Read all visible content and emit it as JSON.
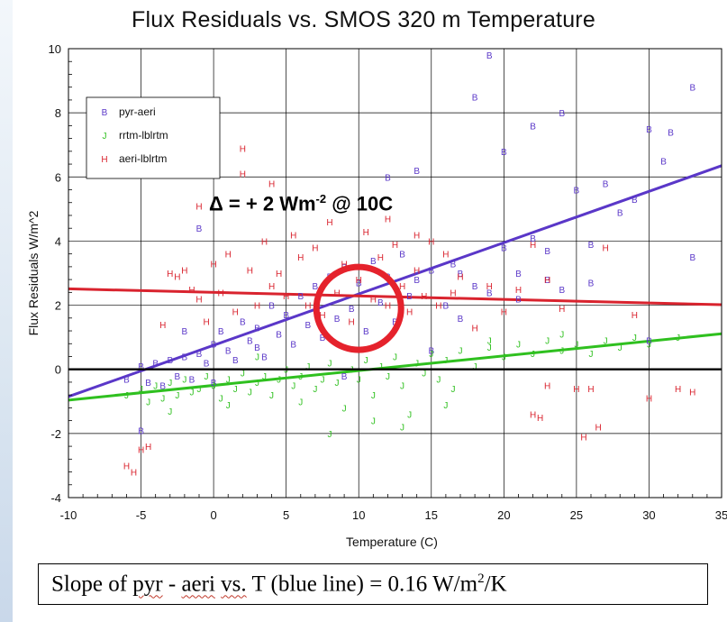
{
  "chart_data": {
    "type": "scatter",
    "title": "Flux Residuals vs. SMOS 320 m Temperature",
    "xlabel": "Temperature (C)",
    "ylabel": "Flux Residuals   W/m^2",
    "xlim": [
      -10,
      35
    ],
    "ylim": [
      -4,
      10
    ],
    "xticks": [
      "-10",
      "-5",
      "0",
      "5",
      "10",
      "15",
      "20",
      "25",
      "30",
      "35"
    ],
    "yticks": [
      "-4",
      "-2",
      "0",
      "2",
      "4",
      "6",
      "8",
      "10"
    ],
    "grid": true,
    "legend_position": "top-left",
    "series": [
      {
        "name": "pyr-aeri",
        "marker": "B",
        "color": "#5a37c8",
        "fit": {
          "slope": 0.16,
          "intercept": 0.75
        },
        "points": [
          [
            -6,
            -0.3
          ],
          [
            -5,
            0.1
          ],
          [
            -4.5,
            -0.4
          ],
          [
            -4,
            0.2
          ],
          [
            -3.5,
            -0.5
          ],
          [
            -3,
            0.3
          ],
          [
            -2.5,
            -0.2
          ],
          [
            -2,
            0.4
          ],
          [
            -1.5,
            -0.3
          ],
          [
            -1,
            0.5
          ],
          [
            -0.5,
            0.2
          ],
          [
            0,
            0.8
          ],
          [
            0,
            -0.4
          ],
          [
            0.5,
            1.2
          ],
          [
            1,
            0.6
          ],
          [
            1.5,
            0.3
          ],
          [
            2,
            1.5
          ],
          [
            2.5,
            0.9
          ],
          [
            3,
            1.3
          ],
          [
            3.5,
            0.4
          ],
          [
            4,
            2.0
          ],
          [
            4.5,
            1.1
          ],
          [
            5,
            1.7
          ],
          [
            5.5,
            0.8
          ],
          [
            6,
            2.3
          ],
          [
            6.5,
            1.4
          ],
          [
            7,
            2.6
          ],
          [
            7.5,
            1.0
          ],
          [
            8,
            2.9
          ],
          [
            8.5,
            1.6
          ],
          [
            9,
            3.2
          ],
          [
            9.5,
            1.9
          ],
          [
            10,
            2.7
          ],
          [
            10.5,
            1.2
          ],
          [
            11,
            3.4
          ],
          [
            11.5,
            2.1
          ],
          [
            12,
            2.9
          ],
          [
            12.5,
            1.5
          ],
          [
            13,
            3.6
          ],
          [
            13.5,
            2.3
          ],
          [
            14,
            2.8
          ],
          [
            15,
            3.1
          ],
          [
            16,
            2.0
          ],
          [
            16.5,
            3.3
          ],
          [
            17,
            3.0
          ],
          [
            18,
            2.6
          ],
          [
            19,
            2.4
          ],
          [
            20,
            3.8
          ],
          [
            21,
            2.2
          ],
          [
            22,
            4.1
          ],
          [
            23,
            3.7
          ],
          [
            24,
            2.5
          ],
          [
            25,
            5.6
          ],
          [
            26,
            3.9
          ],
          [
            27,
            5.8
          ],
          [
            28,
            4.9
          ],
          [
            29,
            5.3
          ],
          [
            30,
            7.5
          ],
          [
            31,
            6.5
          ],
          [
            33,
            8.8
          ],
          [
            31.5,
            7.4
          ],
          [
            22,
            7.6
          ],
          [
            18,
            8.5
          ],
          [
            19,
            9.8
          ],
          [
            20,
            6.8
          ],
          [
            24,
            8.0
          ],
          [
            33,
            3.5
          ],
          [
            -1,
            4.4
          ],
          [
            12,
            6.0
          ],
          [
            14,
            6.2
          ],
          [
            -5,
            -1.9
          ],
          [
            -2,
            1.2
          ],
          [
            3,
            0.7
          ],
          [
            9,
            -0.2
          ],
          [
            17,
            1.6
          ],
          [
            23,
            2.8
          ],
          [
            26,
            2.7
          ],
          [
            30,
            0.9
          ],
          [
            15,
            0.6
          ],
          [
            21,
            3.0
          ]
        ]
      },
      {
        "name": "rrtm-lblrtm",
        "marker": "J",
        "color": "#2fc01f",
        "fit": {
          "slope": 0.046,
          "intercept": -0.5
        },
        "points": [
          [
            -6,
            -0.8
          ],
          [
            -5,
            -0.6
          ],
          [
            -4.5,
            -1.0
          ],
          [
            -4,
            -0.5
          ],
          [
            -3.5,
            -0.9
          ],
          [
            -3,
            -0.4
          ],
          [
            -2.5,
            -0.8
          ],
          [
            -2,
            -0.3
          ],
          [
            -1.5,
            -0.7
          ],
          [
            -1,
            -0.6
          ],
          [
            -0.5,
            -0.2
          ],
          [
            0,
            -0.5
          ],
          [
            0.5,
            -0.9
          ],
          [
            1,
            -0.3
          ],
          [
            1.5,
            -0.6
          ],
          [
            2,
            -0.1
          ],
          [
            2.5,
            -0.7
          ],
          [
            3,
            -0.4
          ],
          [
            3.5,
            -0.2
          ],
          [
            4,
            -0.8
          ],
          [
            4.5,
            -0.3
          ],
          [
            5,
            0.0
          ],
          [
            5.5,
            -0.5
          ],
          [
            6,
            -0.2
          ],
          [
            6.5,
            0.1
          ],
          [
            7,
            -0.6
          ],
          [
            7.5,
            -0.3
          ],
          [
            8,
            0.2
          ],
          [
            8.5,
            -0.4
          ],
          [
            9,
            -1.2
          ],
          [
            9.5,
            0.0
          ],
          [
            10,
            -0.3
          ],
          [
            10.5,
            0.3
          ],
          [
            11,
            -0.8
          ],
          [
            11.5,
            0.1
          ],
          [
            12,
            -0.2
          ],
          [
            12.5,
            0.4
          ],
          [
            13,
            -0.5
          ],
          [
            13.5,
            -1.4
          ],
          [
            14,
            0.2
          ],
          [
            14.5,
            -0.1
          ],
          [
            15,
            0.5
          ],
          [
            15.5,
            -0.3
          ],
          [
            16,
            0.3
          ],
          [
            16.5,
            -0.6
          ],
          [
            17,
            0.6
          ],
          [
            18,
            0.1
          ],
          [
            19,
            0.7
          ],
          [
            20,
            0.4
          ],
          [
            21,
            0.8
          ],
          [
            22,
            0.5
          ],
          [
            23,
            0.9
          ],
          [
            24,
            0.6
          ],
          [
            25,
            0.8
          ],
          [
            26,
            0.5
          ],
          [
            27,
            0.9
          ],
          [
            28,
            0.7
          ],
          [
            29,
            1.0
          ],
          [
            30,
            0.8
          ],
          [
            32,
            1.0
          ],
          [
            -3,
            -1.3
          ],
          [
            1,
            -1.1
          ],
          [
            6,
            -1.0
          ],
          [
            11,
            -1.6
          ],
          [
            13,
            -1.8
          ],
          [
            16,
            -1.1
          ],
          [
            8,
            -2.0
          ],
          [
            3,
            0.4
          ],
          [
            19,
            0.9
          ],
          [
            24,
            1.1
          ]
        ]
      },
      {
        "name": "aeri-lblrtm",
        "marker": "H",
        "color": "#d9232e",
        "fit": {
          "slope": -0.011,
          "intercept": 2.4
        },
        "points": [
          [
            -6,
            -3.0
          ],
          [
            -5.5,
            -3.2
          ],
          [
            -5,
            -2.5
          ],
          [
            -4.5,
            -2.4
          ],
          [
            -3.5,
            1.4
          ],
          [
            -3,
            3.0
          ],
          [
            -2.5,
            2.9
          ],
          [
            -2,
            3.1
          ],
          [
            -1.5,
            2.5
          ],
          [
            -1,
            2.2
          ],
          [
            -0.5,
            1.5
          ],
          [
            0,
            3.3
          ],
          [
            0.5,
            2.4
          ],
          [
            1,
            3.6
          ],
          [
            1.5,
            1.8
          ],
          [
            2,
            6.9
          ],
          [
            2.5,
            3.1
          ],
          [
            3,
            2.0
          ],
          [
            3.5,
            4.0
          ],
          [
            4,
            2.6
          ],
          [
            4.5,
            3.0
          ],
          [
            5,
            2.3
          ],
          [
            5.5,
            4.2
          ],
          [
            6,
            3.5
          ],
          [
            6.5,
            2.0
          ],
          [
            7,
            3.8
          ],
          [
            7.5,
            1.7
          ],
          [
            8,
            4.6
          ],
          [
            8.5,
            2.4
          ],
          [
            9,
            3.3
          ],
          [
            9.5,
            1.5
          ],
          [
            10,
            2.8
          ],
          [
            10.5,
            4.3
          ],
          [
            11,
            2.2
          ],
          [
            11.5,
            3.5
          ],
          [
            12,
            2.0
          ],
          [
            12.5,
            3.9
          ],
          [
            13,
            2.6
          ],
          [
            13.5,
            1.8
          ],
          [
            14,
            3.1
          ],
          [
            14.5,
            2.3
          ],
          [
            15,
            4.0
          ],
          [
            15.5,
            2.0
          ],
          [
            16,
            3.6
          ],
          [
            16.5,
            2.4
          ],
          [
            17,
            2.9
          ],
          [
            18,
            1.3
          ],
          [
            19,
            2.6
          ],
          [
            20,
            1.8
          ],
          [
            21,
            2.5
          ],
          [
            22,
            3.9
          ],
          [
            23,
            2.8
          ],
          [
            24,
            1.9
          ],
          [
            25,
            -0.6
          ],
          [
            25.5,
            -2.1
          ],
          [
            26,
            -0.6
          ],
          [
            26.5,
            -1.8
          ],
          [
            27,
            3.8
          ],
          [
            29,
            1.7
          ],
          [
            30,
            -0.9
          ],
          [
            32,
            -0.6
          ],
          [
            33,
            -0.7
          ],
          [
            22,
            -1.4
          ],
          [
            22.5,
            -1.5
          ],
          [
            23,
            -0.5
          ],
          [
            2,
            6.1
          ],
          [
            -1,
            5.1
          ],
          [
            4,
            5.8
          ],
          [
            12,
            4.7
          ],
          [
            14,
            4.2
          ]
        ]
      }
    ]
  },
  "annotation": {
    "prefix": "Δ = + 2 Wm",
    "exponent": "-2",
    "suffix": " @ 10C",
    "circle_color": "#e5222c"
  },
  "slope_note": {
    "prefix": "Slope of ",
    "word1": "pyr",
    "dash": " - ",
    "word2": "aeri",
    "space": " ",
    "word3": "vs.",
    "middle": " T (blue line) = 0.16 W/m",
    "exponent": "2",
    "suffix": "/K"
  },
  "colors": {
    "zero_line": "#000000",
    "grid": "#000000"
  }
}
